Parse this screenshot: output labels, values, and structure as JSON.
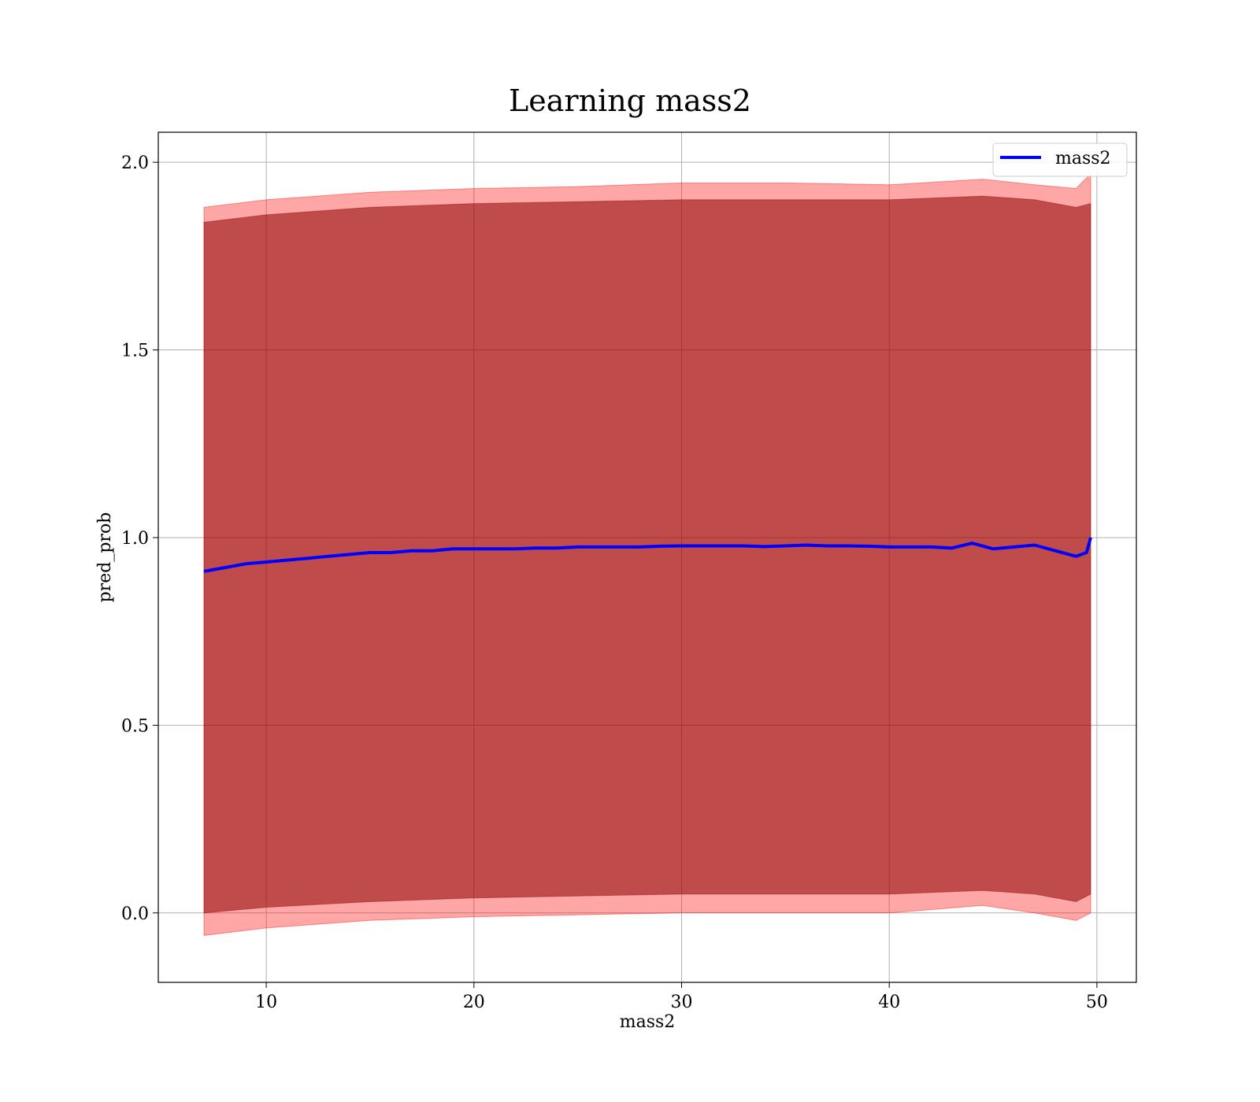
{
  "chart_data": {
    "type": "line",
    "title": "Learning mass2",
    "xlabel": "mass2",
    "ylabel": "pred_prob",
    "xlim": [
      4.8,
      51.9
    ],
    "ylim": [
      -0.185,
      2.08
    ],
    "xticks": [
      10,
      20,
      30,
      40,
      50
    ],
    "yticks": [
      0.0,
      0.5,
      1.0,
      1.5,
      2.0
    ],
    "xtick_labels": [
      "10",
      "20",
      "30",
      "40",
      "50"
    ],
    "ytick_labels": [
      "0.0",
      "0.5",
      "1.0",
      "1.5",
      "2.0"
    ],
    "grid": true,
    "legend": {
      "position": "upper right",
      "entries": [
        "mass2"
      ]
    },
    "series": [
      {
        "name": "mass2",
        "color": "#0000ff",
        "x": [
          7.0,
          8.0,
          9.0,
          10.0,
          11.0,
          12.0,
          13.0,
          14.0,
          15.0,
          16.0,
          17.0,
          18.0,
          19.0,
          20.0,
          21.0,
          22.0,
          23.0,
          24.0,
          25.0,
          26.0,
          27.0,
          28.0,
          29.0,
          30.0,
          31.0,
          32.0,
          33.0,
          34.0,
          35.0,
          36.0,
          37.0,
          38.0,
          39.0,
          40.0,
          41.0,
          42.0,
          43.0,
          44.0,
          45.0,
          46.0,
          47.0,
          48.0,
          49.0,
          49.5,
          49.7
        ],
        "y": [
          0.91,
          0.92,
          0.93,
          0.935,
          0.94,
          0.945,
          0.95,
          0.955,
          0.96,
          0.96,
          0.965,
          0.965,
          0.97,
          0.97,
          0.97,
          0.97,
          0.972,
          0.972,
          0.975,
          0.975,
          0.975,
          0.975,
          0.977,
          0.978,
          0.978,
          0.978,
          0.978,
          0.976,
          0.978,
          0.98,
          0.978,
          0.978,
          0.977,
          0.975,
          0.975,
          0.975,
          0.972,
          0.985,
          0.97,
          0.975,
          0.98,
          0.965,
          0.95,
          0.96,
          1.0
        ]
      }
    ],
    "bands": [
      {
        "color": "#ff0000",
        "opacity": 0.35,
        "x": [
          7.0,
          10.0,
          15.0,
          20.0,
          25.0,
          30.0,
          35.0,
          40.0,
          44.5,
          47.0,
          49.0,
          49.7
        ],
        "upper": [
          1.88,
          1.9,
          1.92,
          1.93,
          1.935,
          1.945,
          1.945,
          1.94,
          1.955,
          1.94,
          1.93,
          1.97
        ],
        "lower": [
          -0.06,
          -0.04,
          -0.02,
          -0.01,
          -0.005,
          0.0,
          0.0,
          0.0,
          0.02,
          0.0,
          -0.02,
          0.0
        ]
      },
      {
        "color": "#8b0000",
        "opacity": 0.55,
        "x": [
          7.0,
          10.0,
          15.0,
          20.0,
          25.0,
          30.0,
          35.0,
          40.0,
          44.5,
          47.0,
          49.0,
          49.7
        ],
        "upper": [
          1.84,
          1.86,
          1.88,
          1.89,
          1.895,
          1.9,
          1.9,
          1.9,
          1.91,
          1.9,
          1.88,
          1.89
        ],
        "lower": [
          0.0,
          0.015,
          0.03,
          0.04,
          0.045,
          0.05,
          0.05,
          0.05,
          0.06,
          0.05,
          0.03,
          0.05
        ]
      }
    ]
  }
}
